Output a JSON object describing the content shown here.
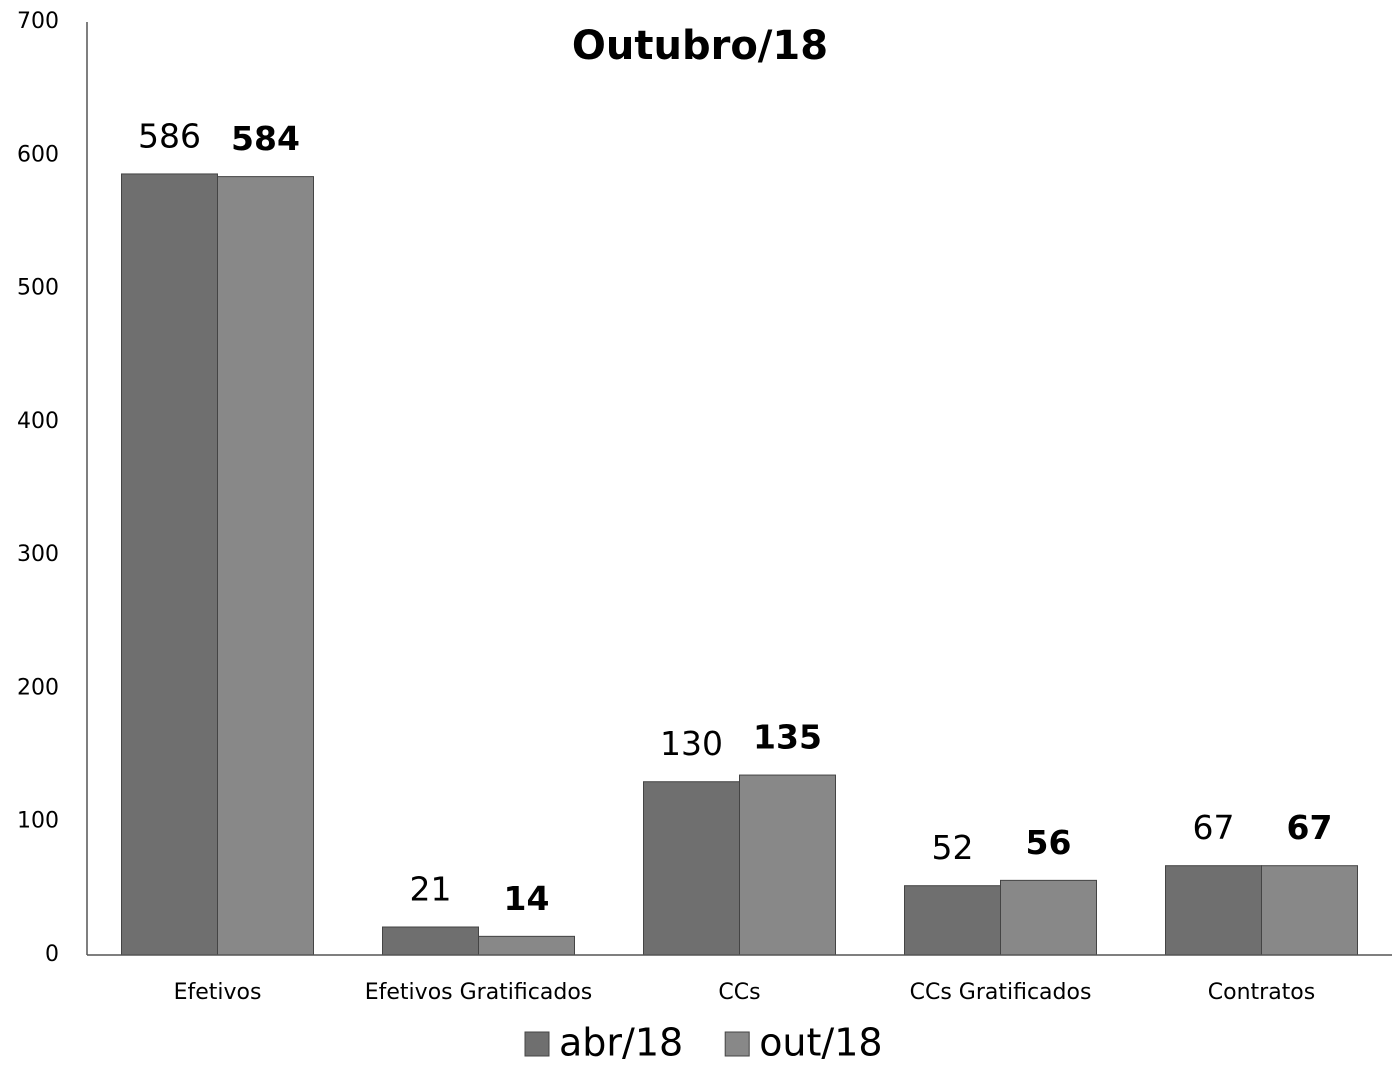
{
  "chart_data": {
    "type": "bar",
    "title": "Outubro/18",
    "categories": [
      "Efetivos",
      "Efetivos Gratificados",
      "CCs",
      "CCs Gratificados",
      "Contratos"
    ],
    "series": [
      {
        "name": "abr/18",
        "color": "#6f6f6f",
        "values": [
          586,
          21,
          130,
          52,
          67
        ]
      },
      {
        "name": "out/18",
        "color": "#888888",
        "values": [
          584,
          14,
          135,
          56,
          67
        ]
      }
    ],
    "ylim": [
      0,
      700
    ],
    "yticks": [
      0,
      100,
      200,
      300,
      400,
      500,
      600,
      700
    ],
    "grid": false,
    "legend": "bottom"
  }
}
